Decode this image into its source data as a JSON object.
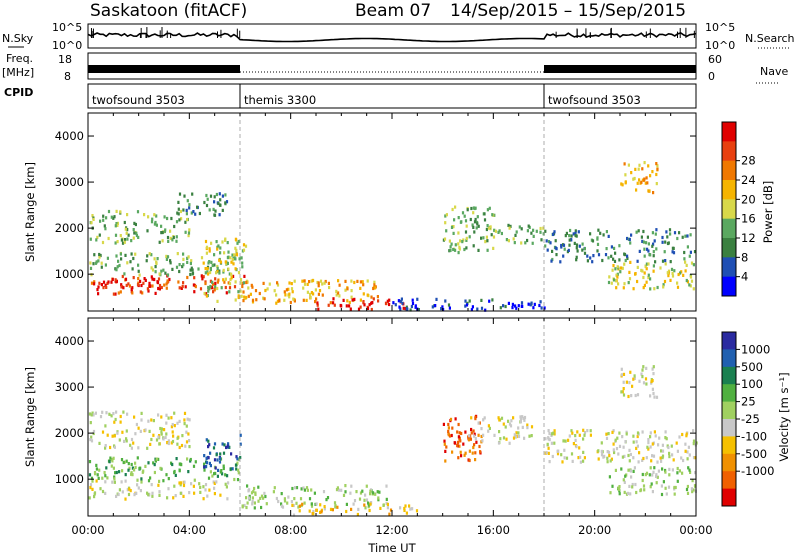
{
  "header": {
    "station": "Saskatoon (fitACF)",
    "beam": "Beam 07",
    "dates": "14/Sep/2015 – 15/Sep/2015"
  },
  "top_panels": {
    "nsky_label": "N.Sky",
    "nsky_ticks": [
      "10^5",
      "10^0"
    ],
    "nsearch_label": "N.Search",
    "nsearch_ticks": [
      "10^5",
      "10^0"
    ],
    "freq_label": "Freq.",
    "freq_unit": "[MHz]",
    "freq_ticks": [
      "18",
      "8"
    ],
    "nave_label": "Nave",
    "nave_ticks": [
      "60",
      "0"
    ],
    "cpid_label": "CPID",
    "cpid_segments": [
      {
        "name": "twofsound 3503",
        "start_h": 0,
        "end_h": 6
      },
      {
        "name": "themis 3300",
        "start_h": 6,
        "end_h": 18
      },
      {
        "name": "twofsound 3503",
        "start_h": 18,
        "end_h": 24
      }
    ]
  },
  "chart_data": [
    {
      "type": "heatmap",
      "name_hint": "power",
      "ylabel": "Slant Range [km]",
      "colorbar_label": "Power [dB]",
      "colorbar_ticks": [
        "4",
        "8",
        "12",
        "16",
        "20",
        "24",
        "28"
      ],
      "colors": [
        "#0000ff",
        "#1f4fb4",
        "#3a8040",
        "#5aa860",
        "#d8d84a",
        "#f5b400",
        "#f07800",
        "#e84010",
        "#e00000"
      ],
      "xlim": [
        0,
        24
      ],
      "ylim": [
        200,
        4500
      ],
      "y_ticks": [
        1000,
        2000,
        3000,
        4000
      ],
      "regions": [
        {
          "t0": 0.0,
          "t1": 6.2,
          "r0": 600,
          "r1": 1000,
          "v": 7
        },
        {
          "t0": 0.3,
          "t1": 3.0,
          "r0": 700,
          "r1": 950,
          "v": 8
        },
        {
          "t0": 0.0,
          "t1": 6.0,
          "r0": 1000,
          "r1": 1500,
          "v": 3
        },
        {
          "t0": 0.0,
          "t1": 4.0,
          "r0": 1700,
          "r1": 2400,
          "v": 3
        },
        {
          "t0": 3.5,
          "t1": 5.5,
          "r0": 2300,
          "r1": 2800,
          "v": 2
        },
        {
          "t0": 4.5,
          "t1": 6.2,
          "r0": 400,
          "r1": 1800,
          "v": 4
        },
        {
          "t0": 6.0,
          "t1": 11.5,
          "r0": 400,
          "r1": 900,
          "v": 5
        },
        {
          "t0": 9.0,
          "t1": 12.5,
          "r0": 250,
          "r1": 500,
          "v": 8
        },
        {
          "t0": 12.0,
          "t1": 18.0,
          "r0": 250,
          "r1": 500,
          "v": 1
        },
        {
          "t0": 14.0,
          "t1": 16.0,
          "r0": 1500,
          "r1": 2500,
          "v": 3
        },
        {
          "t0": 15.5,
          "t1": 18.0,
          "r0": 1700,
          "r1": 2100,
          "v": 3
        },
        {
          "t0": 18.0,
          "t1": 24.0,
          "r0": 1300,
          "r1": 2000,
          "v": 2
        },
        {
          "t0": 20.5,
          "t1": 24.0,
          "r0": 700,
          "r1": 1300,
          "v": 4
        },
        {
          "t0": 21.0,
          "t1": 22.5,
          "r0": 2800,
          "r1": 3500,
          "v": 5
        }
      ]
    },
    {
      "type": "heatmap",
      "name_hint": "velocity",
      "ylabel": "Slant Range [km]",
      "colorbar_label": "Velocity [m s⁻¹]",
      "colorbar_ticks": [
        "1000",
        "500",
        "100",
        "25",
        "-25",
        "-100",
        "-500",
        "-1000"
      ],
      "colors": [
        "#2a2aa0",
        "#2060b0",
        "#1a8050",
        "#50b040",
        "#a0d060",
        "#c8c8c8",
        "#f5c000",
        "#f09000",
        "#f06000",
        "#e00000"
      ],
      "xlim": [
        0,
        24
      ],
      "ylim": [
        200,
        4500
      ],
      "y_ticks": [
        1000,
        2000,
        3000,
        4000
      ],
      "x_ticks": [
        "00:00",
        "04:00",
        "08:00",
        "12:00",
        "16:00",
        "20:00",
        "00:00"
      ],
      "xlabel": "Time UT",
      "regions": [
        {
          "t0": 0.0,
          "t1": 5.5,
          "r0": 600,
          "r1": 1000,
          "v": 5
        },
        {
          "t0": 0.0,
          "t1": 6.0,
          "r0": 1000,
          "r1": 1500,
          "v": 3
        },
        {
          "t0": 0.0,
          "t1": 4.0,
          "r0": 1700,
          "r1": 2500,
          "v": 5
        },
        {
          "t0": 4.5,
          "t1": 6.0,
          "r0": 1200,
          "r1": 2000,
          "v": 1
        },
        {
          "t0": 6.0,
          "t1": 12.0,
          "r0": 400,
          "r1": 900,
          "v": 4
        },
        {
          "t0": 8.0,
          "t1": 13.0,
          "r0": 250,
          "r1": 500,
          "v": 6
        },
        {
          "t0": 14.0,
          "t1": 15.5,
          "r0": 1400,
          "r1": 2400,
          "v": 8
        },
        {
          "t0": 15.0,
          "t1": 17.5,
          "r0": 1800,
          "r1": 2400,
          "v": 5
        },
        {
          "t0": 18.0,
          "t1": 24.0,
          "r0": 1400,
          "r1": 2100,
          "v": 5
        },
        {
          "t0": 20.5,
          "t1": 24.0,
          "r0": 700,
          "r1": 1300,
          "v": 4
        },
        {
          "t0": 21.0,
          "t1": 22.5,
          "r0": 2800,
          "r1": 3500,
          "v": 5
        }
      ]
    }
  ]
}
